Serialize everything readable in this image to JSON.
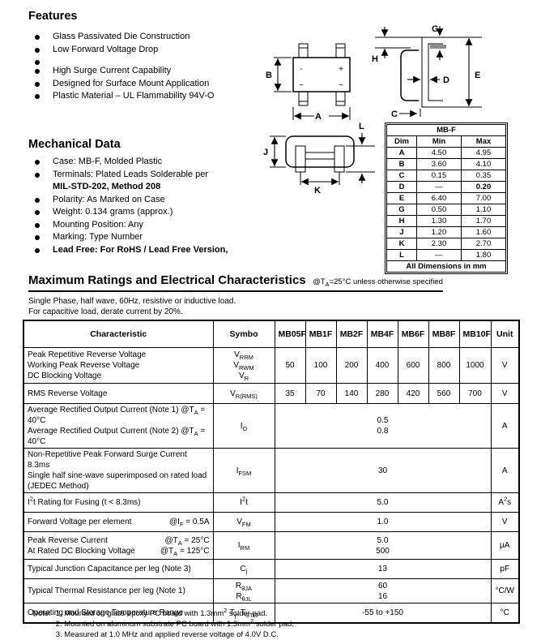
{
  "features": {
    "title": "Features",
    "items": [
      "Glass Passivated Die Construction",
      "Low Forward Voltage Drop",
      "",
      "High Surge Current Capability",
      "Designed for Surface Mount Application",
      "Plastic Material – UL Flammability 94V-O"
    ]
  },
  "mechanical": {
    "title": "Mechanical Data",
    "items": [
      {
        "lines": [
          {
            "text": "Case: MB-F, Molded Plastic",
            "bold": false
          }
        ]
      },
      {
        "lines": [
          {
            "text": "Terminals: Plated Leads Solderable per",
            "bold": false
          },
          {
            "text": "MIL-STD-202, Method 208",
            "bold": true
          }
        ]
      },
      {
        "lines": [
          {
            "text": "Polarity: As Marked on Case",
            "bold": false
          }
        ]
      },
      {
        "lines": [
          {
            "text": "Weight: 0.134 grams (approx.)",
            "bold": false
          }
        ]
      },
      {
        "lines": [
          {
            "text": "Mounting Position: Any",
            "bold": false
          }
        ]
      },
      {
        "lines": [
          {
            "text": "Marking: Type Number",
            "bold": false
          }
        ]
      },
      {
        "lines": [
          {
            "text": "Lead Free: For RoHS / Lead Free Version,",
            "bold": true
          }
        ]
      }
    ]
  },
  "diagrams": {
    "top_view": {
      "label_b": "B",
      "label_a": "A",
      "pin_minus": "-",
      "pin_plus": "+",
      "pin_ac1": "~",
      "pin_ac2": "~"
    },
    "side_view": {
      "label_g": "G",
      "label_h": "H",
      "label_d": "D",
      "label_e": "E",
      "label_c": "C"
    },
    "end_view": {
      "label_j": "J",
      "label_k": "K",
      "label_l": "L"
    }
  },
  "dim_table": {
    "title": "MB-F",
    "headers": [
      "Dim",
      "Min",
      "Max"
    ],
    "rows": [
      [
        "A",
        "4.50",
        "4.95"
      ],
      [
        "B",
        "3.60",
        "4.10"
      ],
      [
        "C",
        "0.15",
        "0.35"
      ],
      [
        "D",
        "—",
        "0.20"
      ],
      [
        "E",
        "6.40",
        "7.00"
      ],
      [
        "G",
        "0.50",
        "1.10"
      ],
      [
        "H",
        "1.30",
        "1.70"
      ],
      [
        "J",
        "1.20",
        "1.60"
      ],
      [
        "K",
        "2.30",
        "2.70"
      ],
      [
        "L",
        "—",
        "1.80"
      ]
    ],
    "bold_max_rows": [
      3
    ],
    "footer": "All Dimensions in mm"
  },
  "ratings": {
    "title": "Maximum Ratings and Electrical Characteristics",
    "subtitle": "@T_{A}=25°C unless otherwise specified",
    "description_lines": [
      "Single Phase, half wave, 60Hz, resistive or inductive load.",
      "For capacitive load, derate current by 20%."
    ],
    "table": {
      "headers": [
        "Characteristic",
        "Symbo",
        "MB05F",
        "MB1F",
        "MB2F",
        "MB4F",
        "MB6F",
        "MB8F",
        "MB10F",
        "Unit"
      ],
      "rows": [
        {
          "characteristic": [
            {
              "left": "Peak Repetitive Reverse Voltage"
            },
            {
              "left": "Working Peak Reverse Voltage"
            },
            {
              "left": "DC Blocking Voltage"
            }
          ],
          "symbol": [
            "V_{RRM}",
            "V_{RWM}",
            "V_{R}"
          ],
          "values": [
            "50",
            "100",
            "200",
            "400",
            "600",
            "800",
            "1000"
          ],
          "unit": "V"
        },
        {
          "characteristic": [
            {
              "left": "RMS Reverse Voltage"
            }
          ],
          "symbol": [
            "V_{R(RMS)}"
          ],
          "values": [
            "35",
            "70",
            "140",
            "280",
            "420",
            "560",
            "700"
          ],
          "unit": "V"
        },
        {
          "characteristic": [
            {
              "left": "Average Rectified Output Current (Note 1) @T_{A} = 40°C"
            },
            {
              "left": "Average Rectified Output Current (Note 2) @T_{A} = 40°C"
            }
          ],
          "symbol": [
            "I_{O}"
          ],
          "span": [
            "0.5",
            "0.8"
          ],
          "unit": "A"
        },
        {
          "characteristic": [
            {
              "left": "Non-Repetitive Peak Forward Surge Current 8.3ms"
            },
            {
              "left": "Single half sine-wave superimposed on rated load"
            },
            {
              "left": "(JEDEC Method)"
            }
          ],
          "symbol": [
            "I_{FSM}"
          ],
          "span": [
            "30"
          ],
          "unit": "A"
        },
        {
          "characteristic": [
            {
              "left": "I^{2}t Rating for Fusing (t < 8.3ms)"
            }
          ],
          "symbol": [
            "I^{2}t"
          ],
          "span": [
            "5.0"
          ],
          "unit": "A^{2}s"
        },
        {
          "characteristic": [
            {
              "left": "Forward Voltage per element",
              "right": "@I_{F} = 0.5A"
            }
          ],
          "symbol": [
            "V_{FM}"
          ],
          "span": [
            "1.0"
          ],
          "unit": "V"
        },
        {
          "characteristic": [
            {
              "left": "Peak Reverse Current",
              "right": "@T_{A} = 25°C"
            },
            {
              "left": "At Rated DC Blocking Voltage",
              "right": "@T_{A} = 125°C"
            }
          ],
          "symbol": [
            "I_{RM}"
          ],
          "span": [
            "5.0",
            "500"
          ],
          "unit": "µA"
        },
        {
          "characteristic": [
            {
              "left": "Typical Junction Capacitance per leg (Note 3)"
            }
          ],
          "symbol": [
            "C_{j}"
          ],
          "span": [
            "13"
          ],
          "unit": "pF"
        },
        {
          "characteristic": [
            {
              "left": "Typical Thermal Resistance per leg (Note 1)"
            }
          ],
          "symbol": [
            "R_{θJA}",
            "R_{θJL}"
          ],
          "span": [
            "60",
            "16"
          ],
          "unit": "°C/W"
        },
        {
          "characteristic": [
            {
              "left": "Operating and Storage Temperature Range"
            }
          ],
          "symbol": [
            "T_{j}, T_{STG}"
          ],
          "span": [
            "-55 to +150"
          ],
          "unit": "°C"
        }
      ]
    }
  },
  "notes": {
    "label": "Note:",
    "items": [
      "1. Mounted on glass epoxy PC board with 1.3mm^{2} solder pad.",
      "2. Mounted on aluminum substrate PC board with 1.3mm^{2} solder pad.",
      "3. Measured at 1.0 MHz and applied reverse voltage of 4.0V D.C."
    ]
  }
}
